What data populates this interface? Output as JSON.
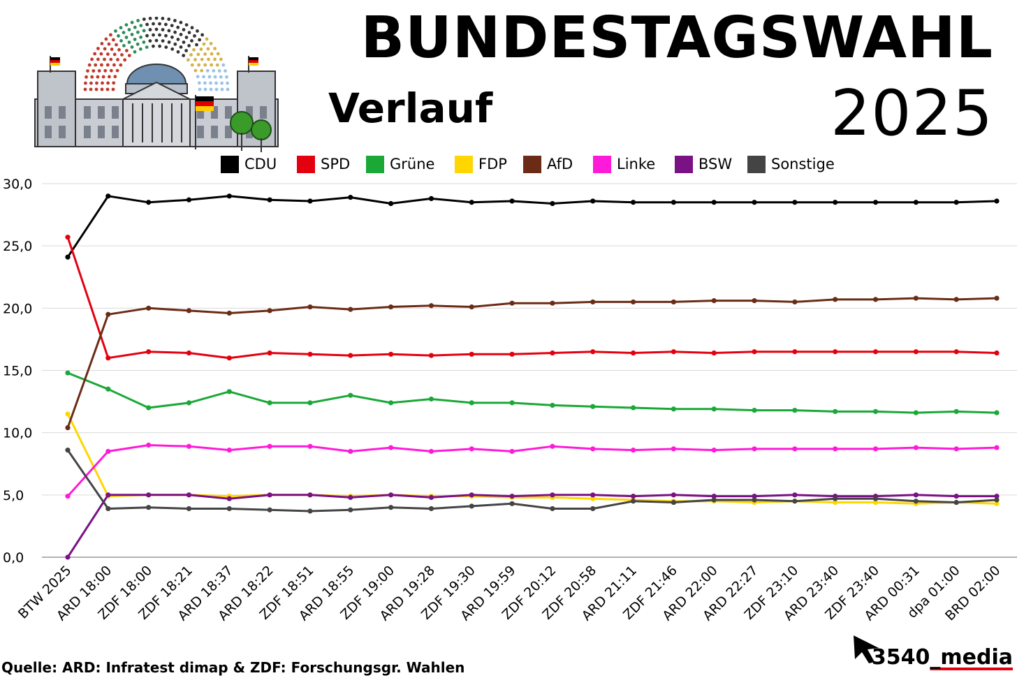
{
  "header": {
    "title": "BUNDESTAGSWAHL",
    "subtitle": "Verlauf",
    "year": "2025"
  },
  "footer": {
    "source": "Quelle: ARD: Infratest dimap & ZDF: Forschungsgr. Wahlen",
    "brand_name": "3540",
    "brand_suffix": "_media"
  },
  "colors": {
    "CDU": "#000000",
    "SPD": "#e3000f",
    "Grüne": "#1aa837",
    "FDP": "#ffd600",
    "AfD": "#6b2c16",
    "Linke": "#ff1ad9",
    "BSW": "#7a1184",
    "Sonstige": "#444444",
    "grid": "#d9d9d9",
    "brand_accent": "#e3000f"
  },
  "chart_data": {
    "type": "line",
    "title": "",
    "xlabel": "",
    "ylabel": "",
    "ylim": [
      0,
      30
    ],
    "yticks": [
      "0,0",
      "5,0",
      "10,0",
      "15,0",
      "20,0",
      "25,0",
      "30,0"
    ],
    "grid": true,
    "legend_position": "top",
    "categories": [
      "BTW 2025",
      "ARD 18:00",
      "ZDF 18:00",
      "ZDF 18:21",
      "ARD 18:37",
      "ARD 18:22",
      "ZDF 18:51",
      "ARD 18:55",
      "ZDF 19:00",
      "ARD 19:28",
      "ZDF 19:30",
      "ARD 19:59",
      "ZDF 20:12",
      "ZDF 20:58",
      "ARD 21:11",
      "ZDF 21:46",
      "ARD 22:00",
      "ARD 22:27",
      "ZDF 23:10",
      "ARD 23:40",
      "ZDF 23:40",
      "ARD 00:31",
      "dpa 01:00",
      "BRD 02:00"
    ],
    "series": [
      {
        "name": "CDU",
        "values": [
          24.1,
          29.0,
          28.5,
          28.7,
          29.0,
          28.7,
          28.6,
          28.9,
          28.4,
          28.8,
          28.5,
          28.6,
          28.4,
          28.6,
          28.5,
          28.5,
          28.5,
          28.5,
          28.5,
          28.5,
          28.5,
          28.5,
          28.5,
          28.6
        ]
      },
      {
        "name": "SPD",
        "values": [
          25.7,
          16.0,
          16.5,
          16.4,
          16.0,
          16.4,
          16.3,
          16.2,
          16.3,
          16.2,
          16.3,
          16.3,
          16.4,
          16.5,
          16.4,
          16.5,
          16.4,
          16.5,
          16.5,
          16.5,
          16.5,
          16.5,
          16.5,
          16.4
        ]
      },
      {
        "name": "Grüne",
        "values": [
          14.8,
          13.5,
          12.0,
          12.4,
          13.3,
          12.4,
          12.4,
          13.0,
          12.4,
          12.7,
          12.4,
          12.4,
          12.2,
          12.1,
          12.0,
          11.9,
          11.9,
          11.8,
          11.8,
          11.7,
          11.7,
          11.6,
          11.7,
          11.6
        ]
      },
      {
        "name": "FDP",
        "values": [
          11.5,
          4.9,
          5.0,
          5.0,
          4.9,
          5.0,
          5.0,
          4.9,
          5.0,
          4.9,
          4.9,
          4.8,
          4.8,
          4.7,
          4.6,
          4.5,
          4.5,
          4.4,
          4.5,
          4.4,
          4.4,
          4.3,
          4.4,
          4.3
        ]
      },
      {
        "name": "AfD",
        "values": [
          10.4,
          19.5,
          20.0,
          19.8,
          19.6,
          19.8,
          20.1,
          19.9,
          20.1,
          20.2,
          20.1,
          20.4,
          20.4,
          20.5,
          20.5,
          20.5,
          20.6,
          20.6,
          20.5,
          20.7,
          20.7,
          20.8,
          20.7,
          20.8
        ]
      },
      {
        "name": "Linke",
        "values": [
          4.9,
          8.5,
          9.0,
          8.9,
          8.6,
          8.9,
          8.9,
          8.5,
          8.8,
          8.5,
          8.7,
          8.5,
          8.9,
          8.7,
          8.6,
          8.7,
          8.6,
          8.7,
          8.7,
          8.7,
          8.7,
          8.8,
          8.7,
          8.8
        ]
      },
      {
        "name": "BSW",
        "values": [
          0.0,
          5.0,
          5.0,
          5.0,
          4.7,
          5.0,
          5.0,
          4.8,
          5.0,
          4.8,
          5.0,
          4.9,
          5.0,
          5.0,
          4.9,
          5.0,
          4.9,
          4.9,
          5.0,
          4.9,
          4.9,
          5.0,
          4.9,
          4.9
        ]
      },
      {
        "name": "Sonstige",
        "values": [
          8.6,
          3.9,
          4.0,
          3.9,
          3.9,
          3.8,
          3.7,
          3.8,
          4.0,
          3.9,
          4.1,
          4.3,
          3.9,
          3.9,
          4.5,
          4.4,
          4.6,
          4.6,
          4.5,
          4.7,
          4.7,
          4.5,
          4.4,
          4.6
        ]
      }
    ]
  }
}
